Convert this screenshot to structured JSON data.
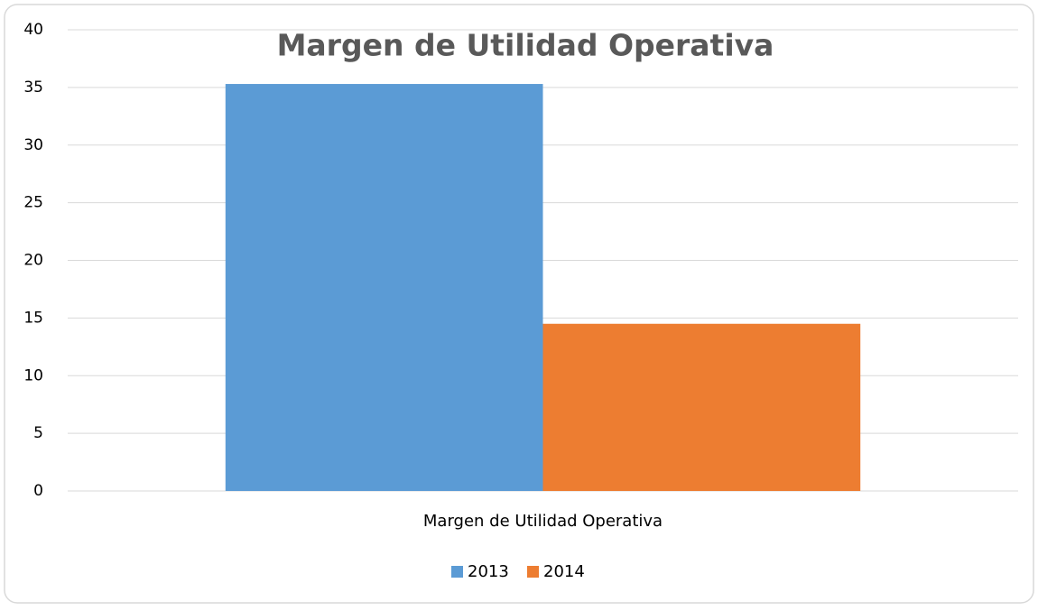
{
  "chart_data": {
    "type": "bar",
    "title": "Margen de Utilidad Operativa",
    "categories": [
      "Margen de Utilidad Operativa"
    ],
    "series": [
      {
        "name": "2013",
        "color": "#5b9bd5",
        "values": [
          35.3
        ]
      },
      {
        "name": "2014",
        "color": "#ed7d31",
        "values": [
          14.5
        ]
      }
    ],
    "ylim": [
      0,
      40
    ],
    "yticks": [
      0,
      5,
      10,
      15,
      20,
      25,
      30,
      35,
      40
    ],
    "grid": true,
    "legend": "bottom"
  }
}
